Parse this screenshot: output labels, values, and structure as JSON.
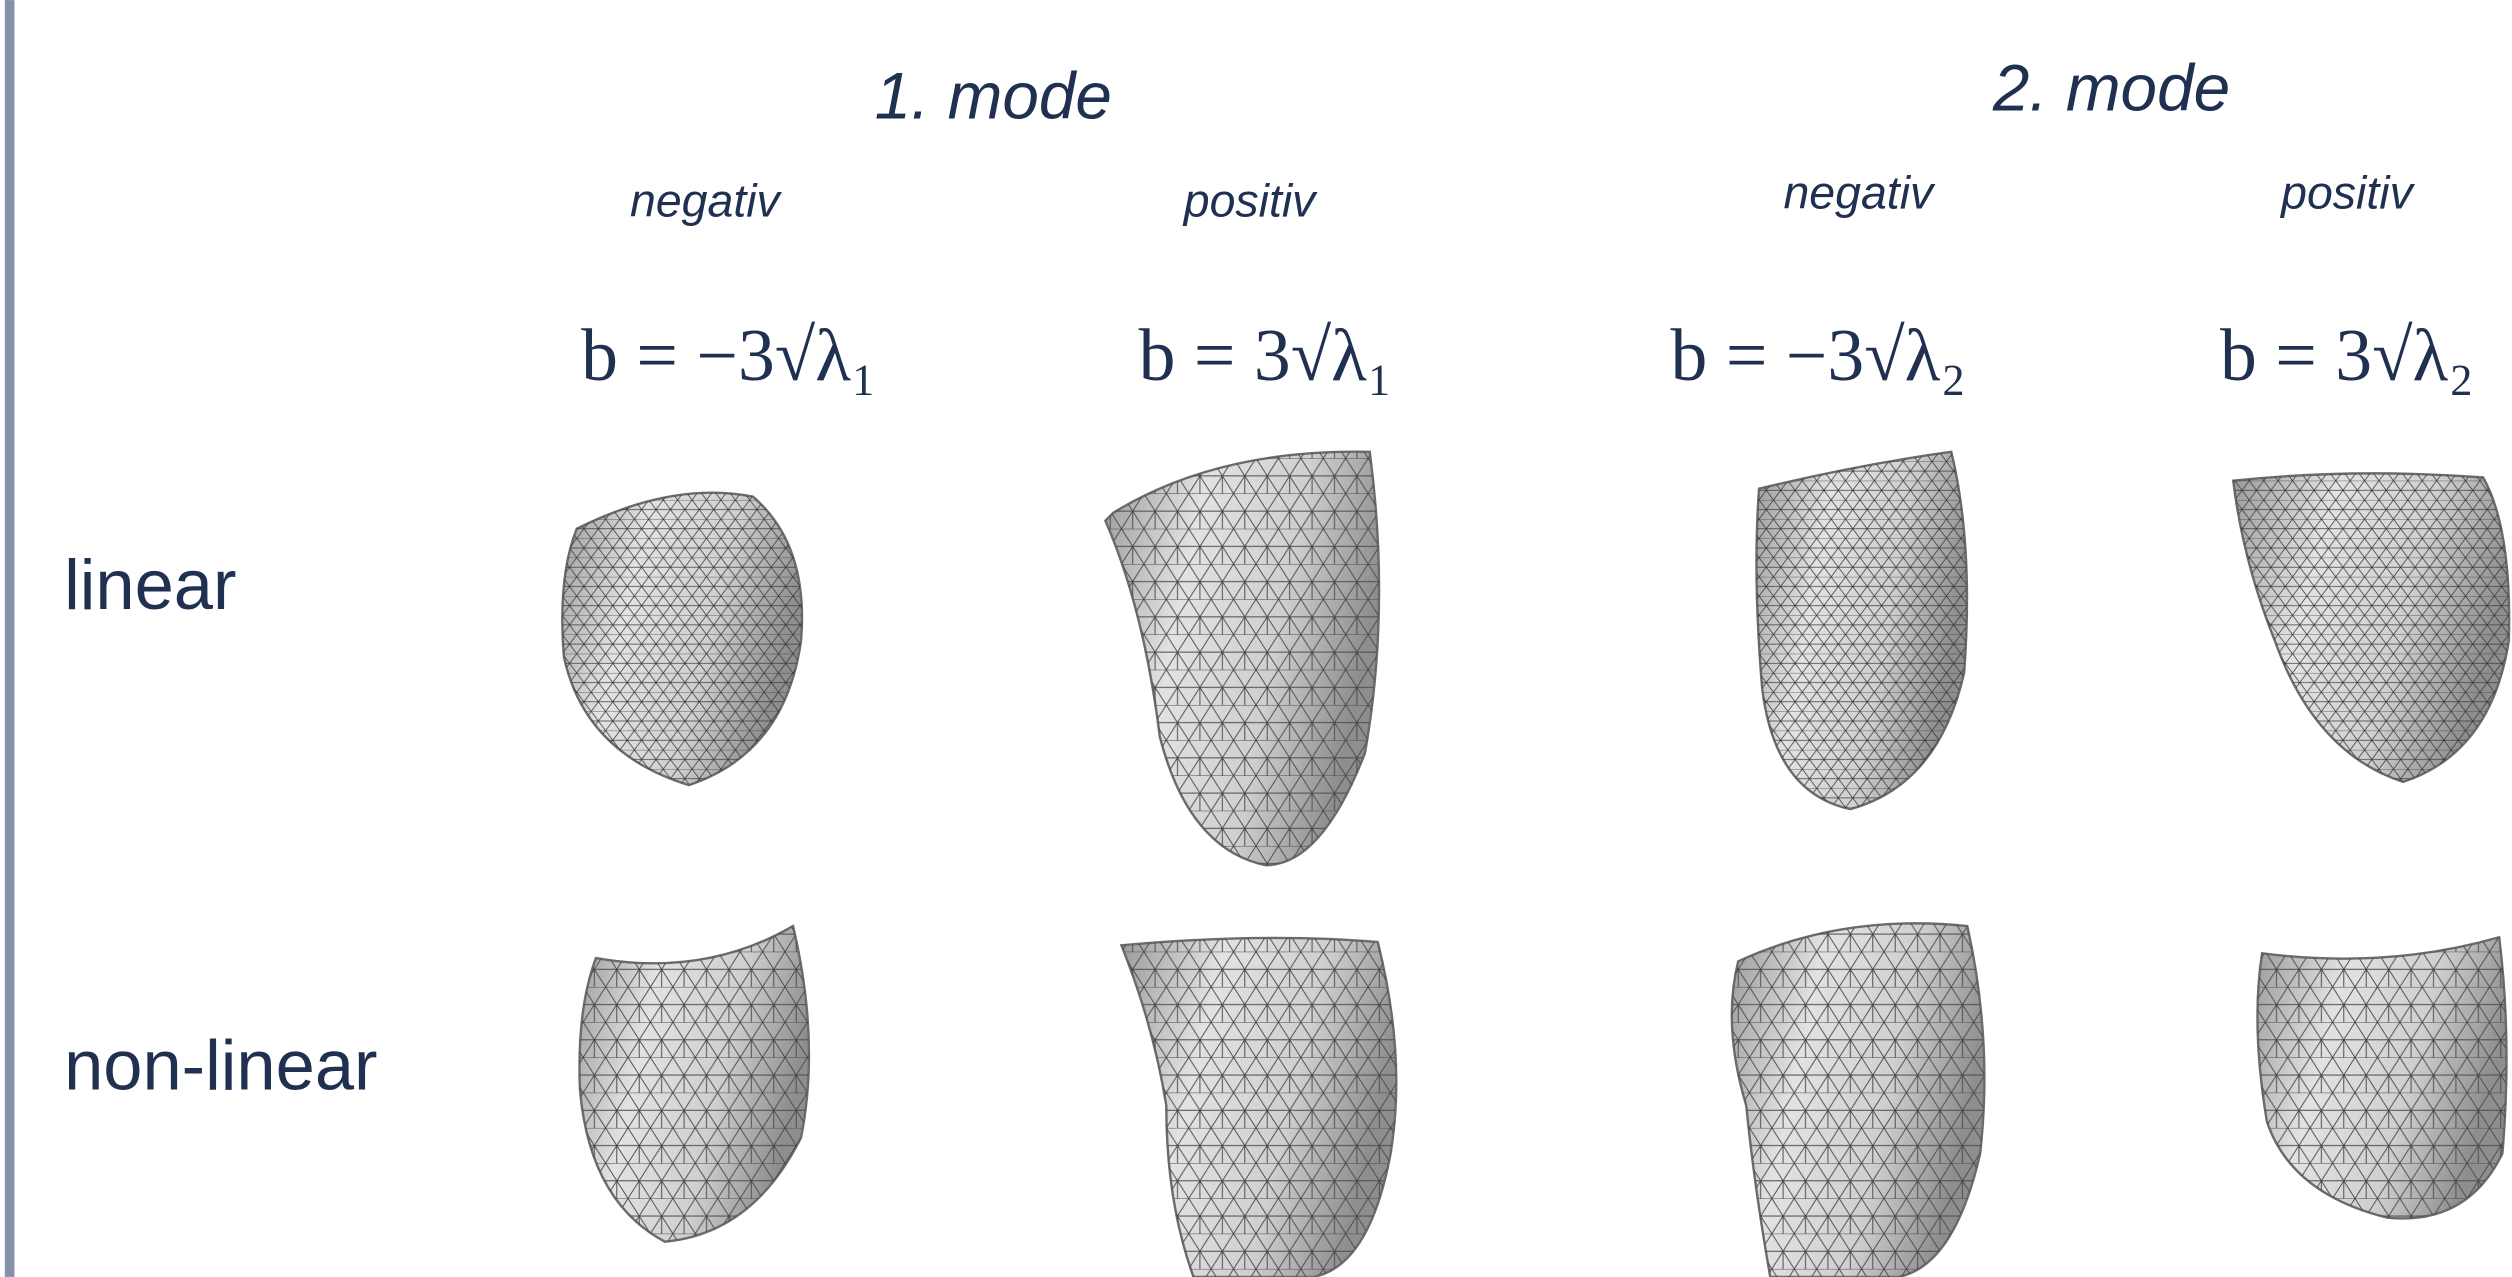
{
  "modes": [
    {
      "title": "1. mode",
      "columns": [
        {
          "label": "negativ",
          "formula": "b = −3√λ₁"
        },
        {
          "label": "positiv",
          "formula": "b = 3√λ₁"
        }
      ]
    },
    {
      "title": "2. mode",
      "columns": [
        {
          "label": "negativ",
          "formula": "b = −3√λ₂"
        },
        {
          "label": "positiv",
          "formula": "b = 3√λ₂"
        }
      ]
    }
  ],
  "rows": [
    {
      "label": "linear"
    },
    {
      "label": "non-linear"
    }
  ]
}
